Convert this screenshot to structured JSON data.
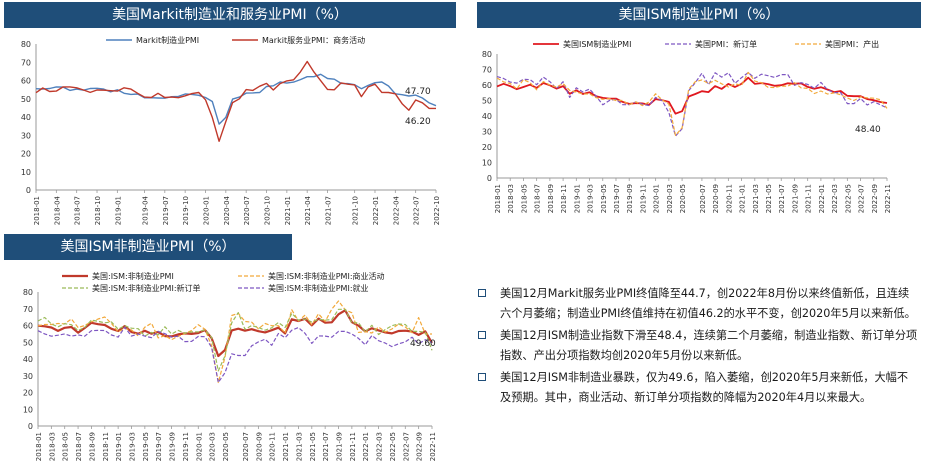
{
  "charts_titles": {
    "markit": "美国Markit制造业和服务业PMI（%）",
    "ism_mfg": "美国ISM制造业PMI（%）",
    "ism_nonmfg": "美国ISM非制造业PMI（%）"
  },
  "bullets": [
    "美国12月Markit服务业PMI终值降至44.7，创2022年8月份以来终值新低，且连续六个月萎缩；制造业PMI终值维持在初值46.2的水平不变，创2020年5月以来新低。",
    "美国12月ISM制造业指数下滑至48.4，连续第二个月萎缩，制造业指数、新订单分项指数、产出分项指数均创2020年5月份以来新低。",
    "美国12月ISM非制造业暴跌，仅为49.6，陷入萎缩，创2020年5月来新低，大幅不及预期。其中，商业活动、新订单分项指数的降幅为2020年4月以来最大。"
  ],
  "colors": {
    "header": "#1f4e79",
    "blue": "#4f81bd",
    "red": "#c0392b",
    "purple": "#7e57c2",
    "orange": "#f2a93b",
    "green": "#9bbb59",
    "ism_red": "#e0181f"
  },
  "chart_data": [
    {
      "type": "line",
      "title": "美国Markit制造业和服务业PMI（%）",
      "ylim": [
        0,
        80
      ],
      "yticks": [
        0,
        10,
        20,
        30,
        40,
        50,
        60,
        70,
        80
      ],
      "xticks": [
        "2018-01",
        "2018-04",
        "2018-07",
        "2018-10",
        "2019-01",
        "2019-04",
        "2019-07",
        "2019-10",
        "2020-01",
        "2020-04",
        "2020-07",
        "2020-10",
        "2021-01",
        "2021-04",
        "2021-07",
        "2021-10",
        "2022-01",
        "2022-04",
        "2022-07",
        "2022-10"
      ],
      "x_count": 60,
      "annotations": [
        "47.70",
        "46.20"
      ],
      "series": [
        {
          "name": "Markit制造业PMI",
          "color": "#4f81bd",
          "values": [
            55.5,
            55.3,
            55.6,
            56.5,
            56.4,
            54.6,
            55.3,
            54.7,
            55.6,
            55.7,
            55.3,
            53.8,
            54.9,
            53.0,
            52.4,
            52.6,
            50.5,
            50.6,
            50.4,
            50.3,
            51.1,
            51.3,
            52.6,
            52.4,
            51.9,
            50.7,
            48.5,
            36.1,
            39.8,
            49.8,
            50.9,
            53.1,
            53.2,
            53.4,
            56.7,
            57.1,
            59.2,
            58.6,
            59.1,
            60.5,
            62.1,
            62.1,
            63.4,
            61.1,
            60.7,
            58.4,
            58.3,
            57.7,
            55.5,
            57.3,
            58.8,
            59.2,
            57.0,
            52.7,
            52.2,
            51.5,
            52.0,
            50.4,
            47.7,
            46.2
          ]
        },
        {
          "name": "Markit服务业PMI：商务活动",
          "color": "#c0392b",
          "values": [
            53.3,
            55.9,
            54.0,
            54.2,
            56.5,
            56.5,
            56.0,
            54.8,
            53.5,
            54.8,
            54.7,
            54.4,
            54.2,
            56.0,
            55.3,
            53.0,
            50.9,
            50.7,
            53.0,
            50.7,
            50.9,
            50.6,
            51.6,
            52.8,
            53.4,
            49.4,
            39.8,
            26.7,
            37.5,
            47.9,
            50.0,
            55.0,
            54.6,
            56.9,
            58.4,
            54.8,
            58.3,
            59.8,
            60.4,
            64.7,
            70.4,
            64.6,
            59.9,
            55.1,
            54.9,
            58.7,
            58.0,
            57.6,
            51.2,
            56.5,
            58.0,
            53.5,
            53.4,
            52.7,
            47.3,
            43.7,
            49.3,
            47.8,
            44.7,
            44.7
          ]
        }
      ]
    },
    {
      "type": "line",
      "title": "美国ISM制造业PMI（%）",
      "ylim": [
        0,
        80
      ],
      "yticks": [
        0,
        10,
        20,
        30,
        40,
        50,
        60,
        70,
        80
      ],
      "xticks": [
        "2018-01",
        "2018-03",
        "2018-05",
        "2018-07",
        "2018-09",
        "2018-11",
        "2019-01",
        "2019-03",
        "2019-05",
        "2019-07",
        "2019-09",
        "2019-11",
        "2020-01",
        "2020-03",
        "2020-05",
        "2020-07",
        "2020-09",
        "2020-11",
        "2021-01",
        "2021-03",
        "2021-05",
        "2021-07",
        "2021-09",
        "2021-11",
        "2022-01",
        "2022-03",
        "2022-05",
        "2022-07",
        "2022-09",
        "2022-11"
      ],
      "x_count": 60,
      "annotations": [
        "48.40"
      ],
      "series": [
        {
          "name": "美国ISM制造业PMI",
          "color": "#e0181f",
          "values": [
            59.1,
            60.8,
            59.3,
            57.3,
            58.7,
            60.2,
            58.1,
            61.3,
            59.8,
            57.7,
            59.3,
            54.3,
            56.6,
            54.2,
            55.3,
            52.8,
            51.7,
            51.2,
            51.2,
            49.1,
            47.8,
            48.3,
            48.1,
            47.2,
            50.9,
            50.1,
            49.1,
            41.5,
            43.1,
            52.6,
            54.2,
            56.0,
            55.4,
            59.3,
            57.5,
            60.7,
            58.7,
            60.8,
            64.7,
            60.7,
            61.2,
            60.6,
            59.5,
            59.9,
            61.1,
            60.8,
            61.1,
            58.8,
            57.6,
            58.6,
            57.1,
            55.4,
            56.1,
            53.0,
            52.8,
            52.8,
            50.9,
            50.2,
            49.0,
            48.4
          ]
        },
        {
          "name": "美国PMI：新订单",
          "color": "#7e57c2",
          "values": [
            65.4,
            64.2,
            61.9,
            61.2,
            63.7,
            63.5,
            60.2,
            65.1,
            62.1,
            57.7,
            62.1,
            52.0,
            58.2,
            55.5,
            57.4,
            52.7,
            47.2,
            50.0,
            50.8,
            47.3,
            47.3,
            49.1,
            47.6,
            46.8,
            52.0,
            49.8,
            42.2,
            27.1,
            31.8,
            56.4,
            61.5,
            67.6,
            60.2,
            67.9,
            65.1,
            67.9,
            61.1,
            64.8,
            68.0,
            64.3,
            67.0,
            66.0,
            64.9,
            66.7,
            66.7,
            59.8,
            61.5,
            60.4,
            57.9,
            61.7,
            57.0,
            55.1,
            55.1,
            48.0,
            48.0,
            51.3,
            47.1,
            49.2,
            47.2,
            45.2
          ]
        },
        {
          "name": "美国PMI：产出",
          "color": "#f2a93b",
          "values": [
            64.5,
            62.0,
            61.0,
            57.5,
            63.5,
            61.5,
            56.9,
            62.2,
            60.0,
            58.7,
            60.9,
            56.5,
            55.5,
            54.1,
            54.3,
            51.8,
            50.8,
            51.3,
            50.0,
            50.0,
            47.3,
            49.1,
            46.7,
            49.0,
            54.3,
            50.3,
            47.7,
            27.5,
            32.4,
            57.3,
            62.1,
            63.3,
            61.0,
            63.0,
            60.8,
            58.7,
            60.7,
            59.9,
            68.1,
            62.5,
            61.5,
            58.5,
            58.4,
            59.3,
            59.3,
            61.5,
            58.1,
            57.8,
            54.5,
            56.1,
            54.2,
            54.9,
            53.7,
            51.6,
            50.0,
            52.3,
            51.7,
            51.5,
            50.5,
            44.9
          ]
        }
      ]
    },
    {
      "type": "line",
      "title": "美国ISM非制造业PMI（%）",
      "ylim": [
        0,
        80
      ],
      "yticks": [
        0,
        10,
        20,
        30,
        40,
        50,
        60,
        70,
        80
      ],
      "xticks": [
        "2018-01",
        "2018-03",
        "2018-05",
        "2018-07",
        "2018-09",
        "2018-11",
        "2019-01",
        "2019-03",
        "2019-05",
        "2019-07",
        "2019-09",
        "2019-11",
        "2020-01",
        "2020-03",
        "2020-05",
        "2020-07",
        "2020-09",
        "2020-11",
        "2021-01",
        "2021-03",
        "2021-05",
        "2021-07",
        "2021-09",
        "2021-11",
        "2022-01",
        "2022-03",
        "2022-05",
        "2022-07",
        "2022-09",
        "2022-11"
      ],
      "x_count": 60,
      "annotations": [
        "49.60"
      ],
      "series": [
        {
          "name": "美国:ISM:非制造业PMI",
          "color": "#c0392b",
          "values": [
            59.9,
            59.5,
            58.8,
            56.8,
            58.6,
            59.1,
            55.7,
            58.5,
            61.6,
            60.8,
            60.3,
            58.0,
            56.7,
            59.7,
            56.1,
            55.1,
            56.9,
            55.1,
            56.2,
            53.7,
            53.5,
            54.7,
            55.3,
            55.0,
            55.5,
            57.3,
            52.5,
            41.8,
            45.4,
            57.1,
            58.1,
            56.9,
            57.8,
            56.6,
            55.9,
            57.2,
            58.7,
            55.3,
            63.7,
            62.7,
            64.0,
            60.1,
            64.1,
            61.7,
            61.9,
            66.7,
            69.1,
            62.0,
            59.9,
            56.5,
            58.3,
            57.1,
            55.9,
            55.3,
            56.7,
            56.9,
            56.4,
            54.4,
            56.5,
            49.6
          ]
        },
        {
          "name": "美国:ISM:非制造业PMI:商业活动",
          "color": "#f2a93b",
          "values": [
            59.8,
            60.6,
            60.6,
            61.2,
            61.0,
            63.9,
            58.8,
            60.0,
            62.2,
            63.9,
            65.1,
            61.2,
            56.2,
            58.2,
            57.3,
            53.8,
            59.0,
            61.4,
            52.6,
            53.9,
            51.6,
            53.5,
            55.2,
            57.0,
            60.5,
            57.8,
            48.0,
            26.0,
            41.0,
            66.0,
            67.2,
            62.4,
            62.0,
            58.0,
            61.2,
            59.9,
            59.9,
            55.5,
            69.4,
            62.7,
            66.2,
            60.4,
            67.0,
            62.4,
            69.8,
            74.6,
            69.4,
            67.6,
            55.9,
            56.3,
            55.5,
            59.1,
            56.1,
            57.9,
            60.9,
            59.1,
            55.7,
            64.7,
            55.0,
            54.9
          ]
        },
        {
          "name": "美国:ISM:非制造业PMI:新订单",
          "color": "#9bbb59",
          "values": [
            62.7,
            64.8,
            60.9,
            59.2,
            61.1,
            60.5,
            57.0,
            58.8,
            63.2,
            62.5,
            61.6,
            62.1,
            57.8,
            59.8,
            58.4,
            58.1,
            53.7,
            55.9,
            54.4,
            59.2,
            54.9,
            57.1,
            55.4,
            56.2,
            56.2,
            57.4,
            52.9,
            32.9,
            41.9,
            61.6,
            67.7,
            57.7,
            60.0,
            58.8,
            57.2,
            58.6,
            61.8,
            58.8,
            67.2,
            63.2,
            63.9,
            62.1,
            63.7,
            63.2,
            63.5,
            69.7,
            69.7,
            61.5,
            61.7,
            56.1,
            60.1,
            54.6,
            57.6,
            59.9,
            60.9,
            60.6,
            56.5,
            56.5,
            56.0,
            45.2
          ]
        },
        {
          "name": "美国:ISM:非制造业PMI:就业",
          "color": "#7e57c2",
          "values": [
            56.9,
            55.0,
            53.6,
            54.2,
            55.0,
            53.7,
            54.4,
            53.6,
            56.9,
            57.1,
            57.0,
            54.3,
            53.1,
            58.9,
            53.7,
            55.0,
            53.7,
            52.7,
            56.5,
            55.1,
            53.1,
            53.6,
            50.4,
            50.5,
            53.5,
            53.3,
            47.0,
            26.0,
            31.8,
            43.1,
            42.1,
            42.1,
            47.9,
            50.2,
            51.8,
            48.2,
            55.2,
            52.7,
            57.2,
            58.8,
            55.3,
            49.3,
            53.8,
            53.7,
            53.0,
            56.5,
            56.5,
            54.9,
            52.3,
            48.5,
            54.0,
            50.9,
            49.5,
            47.4,
            49.1,
            50.2,
            53.0,
            49.1,
            51.5,
            49.8
          ]
        }
      ]
    }
  ]
}
